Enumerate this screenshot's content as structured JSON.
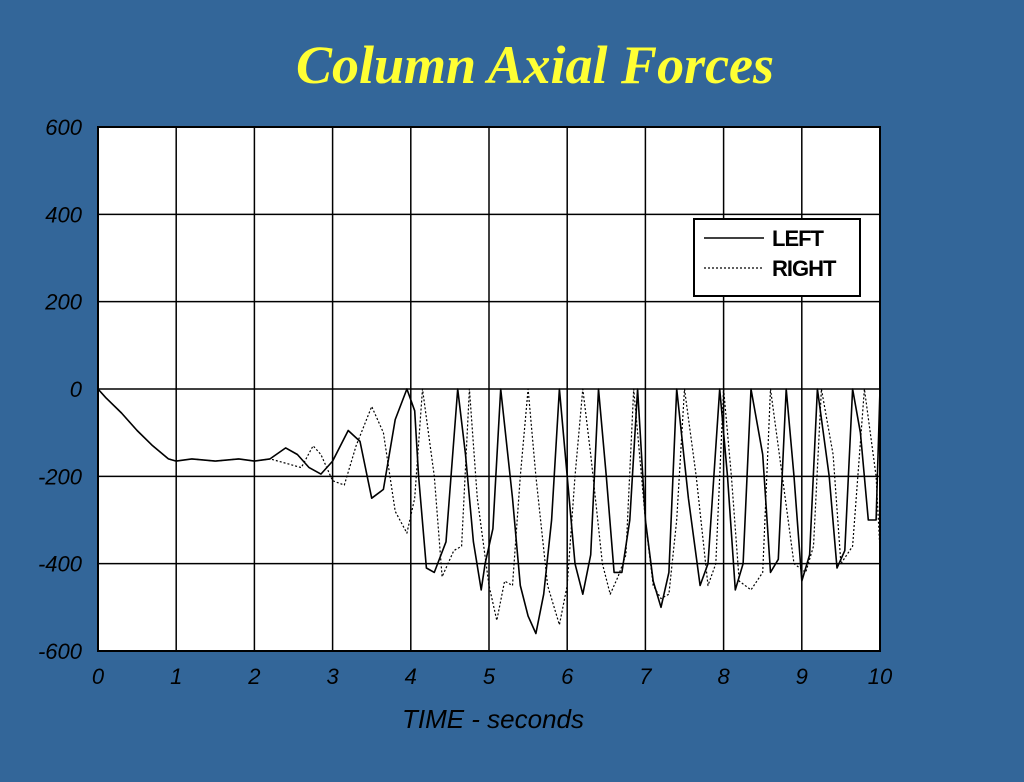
{
  "slide": {
    "title": "Column Axial Forces",
    "background_color": "#336699",
    "title_color": "#ffff33"
  },
  "chart_data": {
    "type": "line",
    "title": "Column Axial Forces",
    "xlabel": "TIME - seconds",
    "ylabel": "",
    "xlim": [
      0,
      10
    ],
    "ylim": [
      -600,
      600
    ],
    "xticks": [
      0,
      1,
      2,
      3,
      4,
      5,
      6,
      7,
      8,
      9,
      10
    ],
    "yticks": [
      -600,
      -400,
      -200,
      0,
      200,
      400,
      600
    ],
    "grid": true,
    "legend_position": "top-right",
    "series": [
      {
        "name": "LEFT",
        "style": "solid",
        "color": "#000000",
        "x": [
          0,
          0.1,
          0.3,
          0.5,
          0.7,
          0.9,
          1.0,
          1.2,
          1.5,
          1.8,
          2.0,
          2.2,
          2.4,
          2.55,
          2.7,
          2.85,
          3.0,
          3.2,
          3.35,
          3.5,
          3.65,
          3.8,
          3.95,
          4.05,
          4.1,
          4.2,
          4.3,
          4.45,
          4.6,
          4.7,
          4.8,
          4.9,
          4.95,
          5.05,
          5.15,
          5.3,
          5.4,
          5.5,
          5.6,
          5.7,
          5.8,
          5.9,
          6.0,
          6.1,
          6.2,
          6.3,
          6.4,
          6.5,
          6.6,
          6.7,
          6.8,
          6.9,
          7.0,
          7.1,
          7.2,
          7.3,
          7.4,
          7.55,
          7.7,
          7.8,
          7.95,
          8.05,
          8.15,
          8.25,
          8.35,
          8.5,
          8.6,
          8.7,
          8.8,
          8.9,
          9.0,
          9.1,
          9.2,
          9.35,
          9.45,
          9.55,
          9.65,
          9.75,
          9.85,
          9.95,
          10.0
        ],
        "values": [
          0,
          -20,
          -55,
          -95,
          -130,
          -160,
          -165,
          -160,
          -165,
          -160,
          -165,
          -160,
          -135,
          -150,
          -180,
          -195,
          -165,
          -95,
          -120,
          -250,
          -230,
          -70,
          0,
          -50,
          -200,
          -410,
          -420,
          -350,
          0,
          -150,
          -350,
          -460,
          -400,
          -320,
          0,
          -250,
          -450,
          -520,
          -560,
          -470,
          -300,
          0,
          -200,
          -400,
          -470,
          -380,
          0,
          -200,
          -420,
          -420,
          -300,
          0,
          -300,
          -440,
          -500,
          -420,
          0,
          -250,
          -450,
          -400,
          0,
          -200,
          -460,
          -400,
          0,
          -150,
          -420,
          -390,
          0,
          -200,
          -440,
          -380,
          0,
          -200,
          -410,
          -370,
          0,
          -100,
          -300,
          -300,
          0
        ]
      },
      {
        "name": "RIGHT",
        "style": "dotted",
        "color": "#000000",
        "x": [
          0,
          0.1,
          0.3,
          0.5,
          0.7,
          0.9,
          1.0,
          1.2,
          1.5,
          1.8,
          2.0,
          2.2,
          2.4,
          2.6,
          2.75,
          2.85,
          3.0,
          3.15,
          3.3,
          3.5,
          3.65,
          3.8,
          3.95,
          4.05,
          4.15,
          4.3,
          4.4,
          4.55,
          4.65,
          4.75,
          4.85,
          5.0,
          5.1,
          5.2,
          5.3,
          5.4,
          5.5,
          5.6,
          5.75,
          5.9,
          6.0,
          6.1,
          6.2,
          6.3,
          6.45,
          6.55,
          6.65,
          6.75,
          6.85,
          7.0,
          7.1,
          7.2,
          7.3,
          7.4,
          7.5,
          7.65,
          7.8,
          7.9,
          8.0,
          8.1,
          8.2,
          8.35,
          8.5,
          8.6,
          8.75,
          8.9,
          9.05,
          9.15,
          9.25,
          9.4,
          9.5,
          9.65,
          9.8,
          9.95,
          10.0
        ],
        "values": [
          0,
          -20,
          -55,
          -95,
          -130,
          -160,
          -165,
          -160,
          -165,
          -160,
          -165,
          -160,
          -170,
          -180,
          -130,
          -150,
          -210,
          -220,
          -130,
          -40,
          -100,
          -280,
          -330,
          -250,
          0,
          -200,
          -430,
          -370,
          -360,
          0,
          -250,
          -450,
          -530,
          -440,
          -450,
          -200,
          0,
          -200,
          -450,
          -540,
          -450,
          -200,
          0,
          -150,
          -400,
          -470,
          -430,
          -380,
          0,
          -300,
          -450,
          -480,
          -470,
          -300,
          0,
          -200,
          -450,
          -400,
          0,
          -200,
          -440,
          -460,
          -420,
          0,
          -200,
          -400,
          -420,
          -360,
          0,
          -150,
          -400,
          -360,
          0,
          -200,
          -370
        ]
      }
    ]
  }
}
